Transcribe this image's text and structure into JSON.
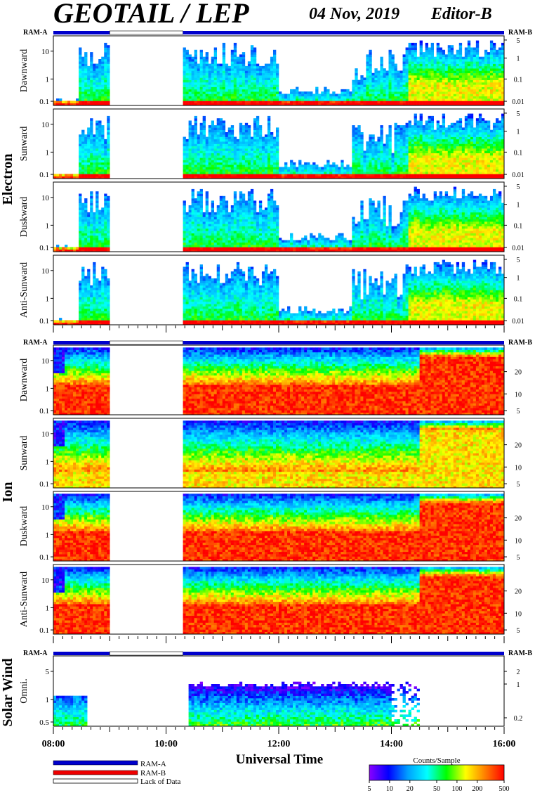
{
  "header": {
    "title": "GEOTAIL / LEP",
    "date": "04 Nov, 2019",
    "editor": "Editor-B"
  },
  "ram_labels": {
    "left": "RAM-A",
    "right": "RAM-B"
  },
  "x_axis": {
    "label": "Universal Time",
    "ticks": [
      "08:00",
      "10:00",
      "12:00",
      "14:00",
      "16:00"
    ],
    "range_hours": [
      8,
      16
    ]
  },
  "data_gaps_hours": [
    [
      9.0,
      10.3
    ]
  ],
  "groups": [
    {
      "label": "Electron",
      "panels": [
        {
          "label": "Dawnward",
          "left_ticks": [
            "10",
            "1",
            "0.1"
          ],
          "right_ticks": [
            "5",
            "1",
            "0.1",
            "0.01"
          ]
        },
        {
          "label": "Sunward",
          "left_ticks": [
            "10",
            "1",
            "0.1"
          ],
          "right_ticks": [
            "5",
            "1",
            "0.1",
            "0.01"
          ]
        },
        {
          "label": "Duskward",
          "left_ticks": [
            "10",
            "1",
            "0.1"
          ],
          "right_ticks": [
            "5",
            "1",
            "0.1",
            "0.01"
          ]
        },
        {
          "label": "Anti-Sunward",
          "left_ticks": [
            "10",
            "1",
            "0.1"
          ],
          "right_ticks": [
            "5",
            "1",
            "0.1",
            "0.01"
          ]
        }
      ]
    },
    {
      "label": "Ion",
      "panels": [
        {
          "label": "Dawnward",
          "left_ticks": [
            "10",
            "1",
            "0.1"
          ],
          "right_ticks": [
            "20",
            "10",
            "5"
          ]
        },
        {
          "label": "Sunward",
          "left_ticks": [
            "10",
            "1",
            "0.1"
          ],
          "right_ticks": [
            "20",
            "10",
            "5"
          ]
        },
        {
          "label": "Duskward",
          "left_ticks": [
            "10",
            "1",
            "0.1"
          ],
          "right_ticks": [
            "20",
            "10",
            "5"
          ]
        },
        {
          "label": "Anti-Sunward",
          "left_ticks": [
            "10",
            "1",
            "0.1"
          ],
          "right_ticks": [
            "20",
            "10",
            "5"
          ]
        }
      ]
    },
    {
      "label": "Solar Wind",
      "panels": [
        {
          "label": "Omni.",
          "left_ticks": [
            "5",
            "1",
            "0.5"
          ],
          "right_ticks": [
            "2",
            "1",
            "0.2"
          ]
        }
      ]
    }
  ],
  "legend": {
    "items": [
      {
        "label": "RAM-A",
        "color": "#0000cc"
      },
      {
        "label": "RAM-B",
        "color": "#ee0000"
      },
      {
        "label": "Lack of Data",
        "color": "#ffffff"
      }
    ]
  },
  "colorbar": {
    "title": "Counts/Sample",
    "ticks": [
      "5",
      "10",
      "20",
      "50",
      "100",
      "200",
      "500"
    ],
    "colors": [
      "#8a00ff",
      "#0000ff",
      "#00a0ff",
      "#00ffff",
      "#00ff00",
      "#ffff00",
      "#ff8000",
      "#ff0000"
    ]
  },
  "chart_data": {
    "type": "heatmap",
    "title": "GEOTAIL / LEP",
    "xlabel": "Universal Time",
    "x_range": [
      "08:00",
      "16:00"
    ],
    "color_scale": {
      "label": "Counts/Sample",
      "min": 5,
      "max": 500,
      "log": true
    },
    "series": [
      {
        "name": "Electron Dawnward",
        "yscale": "log",
        "ylim": [
          0.1,
          30
        ]
      },
      {
        "name": "Electron Sunward",
        "yscale": "log",
        "ylim": [
          0.1,
          30
        ]
      },
      {
        "name": "Electron Duskward",
        "yscale": "log",
        "ylim": [
          0.1,
          30
        ]
      },
      {
        "name": "Electron Anti-Sunward",
        "yscale": "log",
        "ylim": [
          0.1,
          30
        ]
      },
      {
        "name": "Ion Dawnward",
        "yscale": "log",
        "ylim": [
          0.1,
          30
        ]
      },
      {
        "name": "Ion Sunward",
        "yscale": "log",
        "ylim": [
          0.1,
          30
        ]
      },
      {
        "name": "Ion Duskward",
        "yscale": "log",
        "ylim": [
          0.1,
          30
        ]
      },
      {
        "name": "Ion Anti-Sunward",
        "yscale": "log",
        "ylim": [
          0.1,
          30
        ]
      },
      {
        "name": "Solar Wind Omni.",
        "yscale": "log",
        "ylim": [
          0.2,
          8
        ]
      }
    ]
  }
}
